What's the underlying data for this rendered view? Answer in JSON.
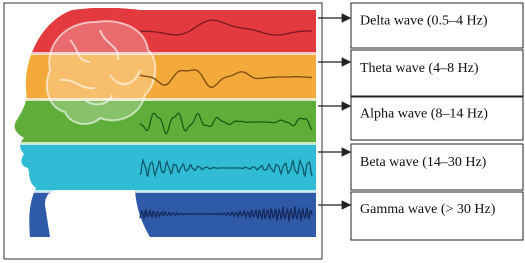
{
  "boxes": [
    {
      "label": "Delta wave (0.5–4 Hz)"
    },
    {
      "label": "Theta wave (4–8 Hz)"
    },
    {
      "label": "Alpha wave (8–14 Hz)"
    },
    {
      "label": "Beta wave (14–30 Hz)"
    },
    {
      "label": "Gamma wave (> 30 Hz)"
    }
  ]
}
